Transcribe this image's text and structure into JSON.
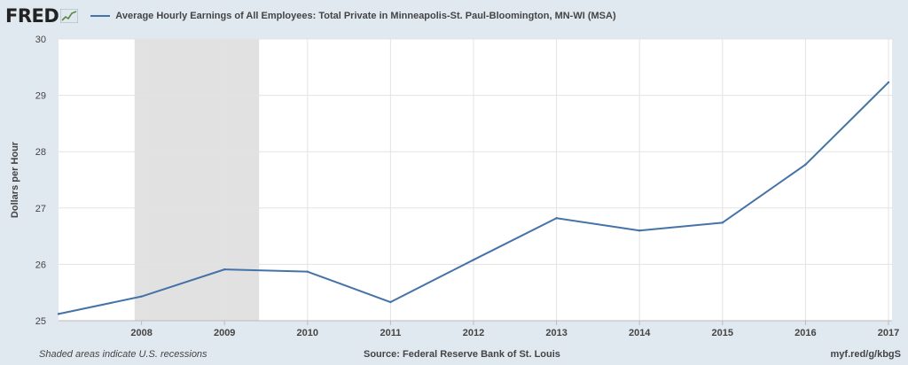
{
  "header": {
    "logo_text": "FRED",
    "logo_icon": "chart-line-icon",
    "series_legend": "Average Hourly Earnings of All Employees: Total Private in Minneapolis-St. Paul-Bloomington, MN-WI (MSA)"
  },
  "footer": {
    "recession_note": "Shaded areas indicate U.S. recessions",
    "source": "Source: Federal Reserve Bank of St. Louis",
    "short_url": "myf.red/g/kbgS"
  },
  "colors": {
    "background": "#e1e9f0",
    "plot_background": "#ffffff",
    "series": "#4572a7",
    "recession": "#e1e1e1",
    "grid": "#e3e3e3"
  },
  "chart_data": {
    "type": "line",
    "title": "",
    "xlabel": "",
    "ylabel": "Dollars per Hour",
    "ylim": [
      25,
      30
    ],
    "xlim": [
      2007,
      2017
    ],
    "yticks": [
      25,
      26,
      27,
      28,
      29,
      30
    ],
    "xticks": [
      "2008",
      "2009",
      "2010",
      "2011",
      "2012",
      "2013",
      "2014",
      "2015",
      "2016",
      "2017"
    ],
    "grid": true,
    "series": [
      {
        "name": "Average Hourly Earnings of All Employees: Total Private in Minneapolis-St. Paul-Bloomington, MN-WI (MSA)",
        "x": [
          2007,
          2008,
          2009,
          2010,
          2011,
          2012,
          2013,
          2014,
          2015,
          2016,
          2017
        ],
        "values": [
          25.12,
          25.43,
          25.91,
          25.87,
          25.33,
          26.08,
          26.82,
          26.6,
          26.74,
          27.77,
          29.23
        ]
      }
    ],
    "recessions": [
      [
        2007.9167,
        2009.4167
      ]
    ]
  }
}
